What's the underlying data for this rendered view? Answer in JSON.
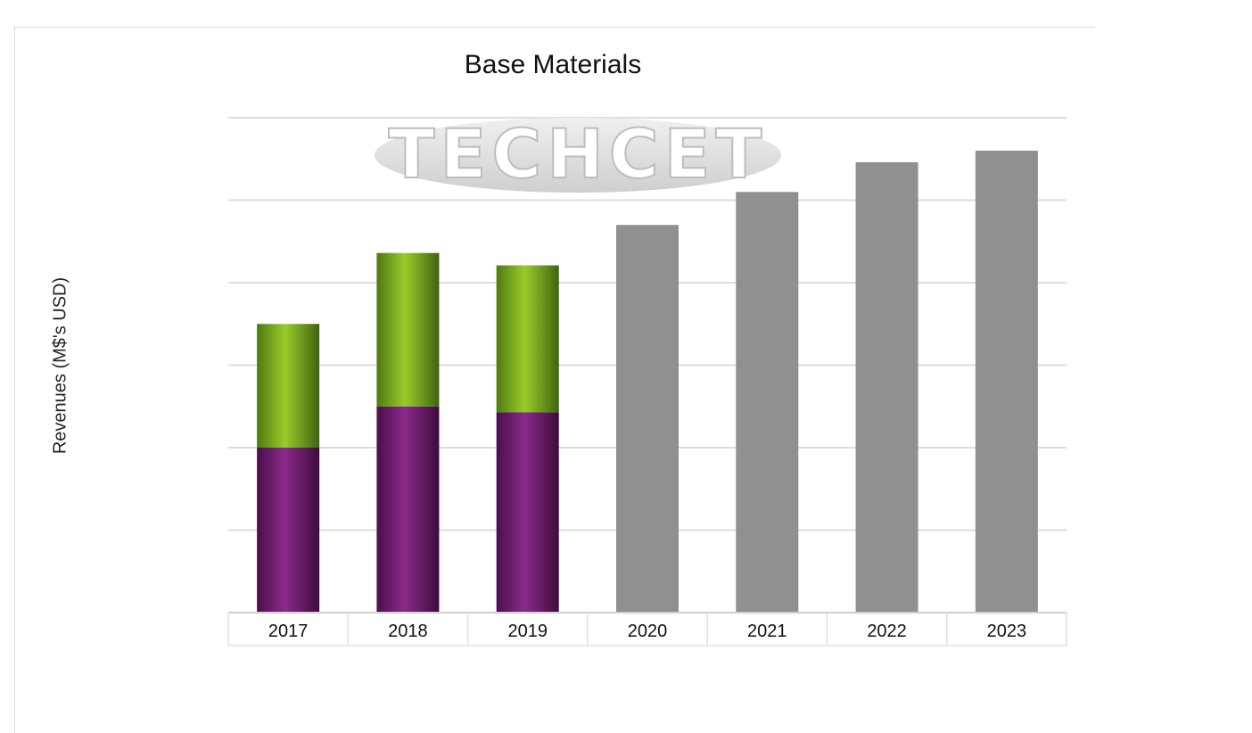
{
  "chart_data": {
    "type": "bar",
    "stacked": true,
    "title": "Base Materials",
    "xlabel": "",
    "ylabel": "Revenues (M$'s USD)",
    "categories": [
      "2017",
      "2018",
      "2019",
      "2020",
      "2021",
      "2022",
      "2023"
    ],
    "series": [
      {
        "color": "#7a1f7a",
        "values": [
          2.0,
          2.5,
          2.43,
          null,
          null,
          null,
          null
        ]
      },
      {
        "color": "#7fb31e",
        "values": [
          1.5,
          1.86,
          1.78,
          null,
          null,
          null,
          null
        ]
      },
      {
        "color": "#909090",
        "values": [
          null,
          null,
          null,
          4.7,
          5.1,
          5.46,
          5.6
        ]
      }
    ],
    "ylim": [
      0,
      6
    ],
    "y_tick_labels": "hidden",
    "grid": true,
    "legend": "none",
    "watermark": "TECHCET"
  }
}
